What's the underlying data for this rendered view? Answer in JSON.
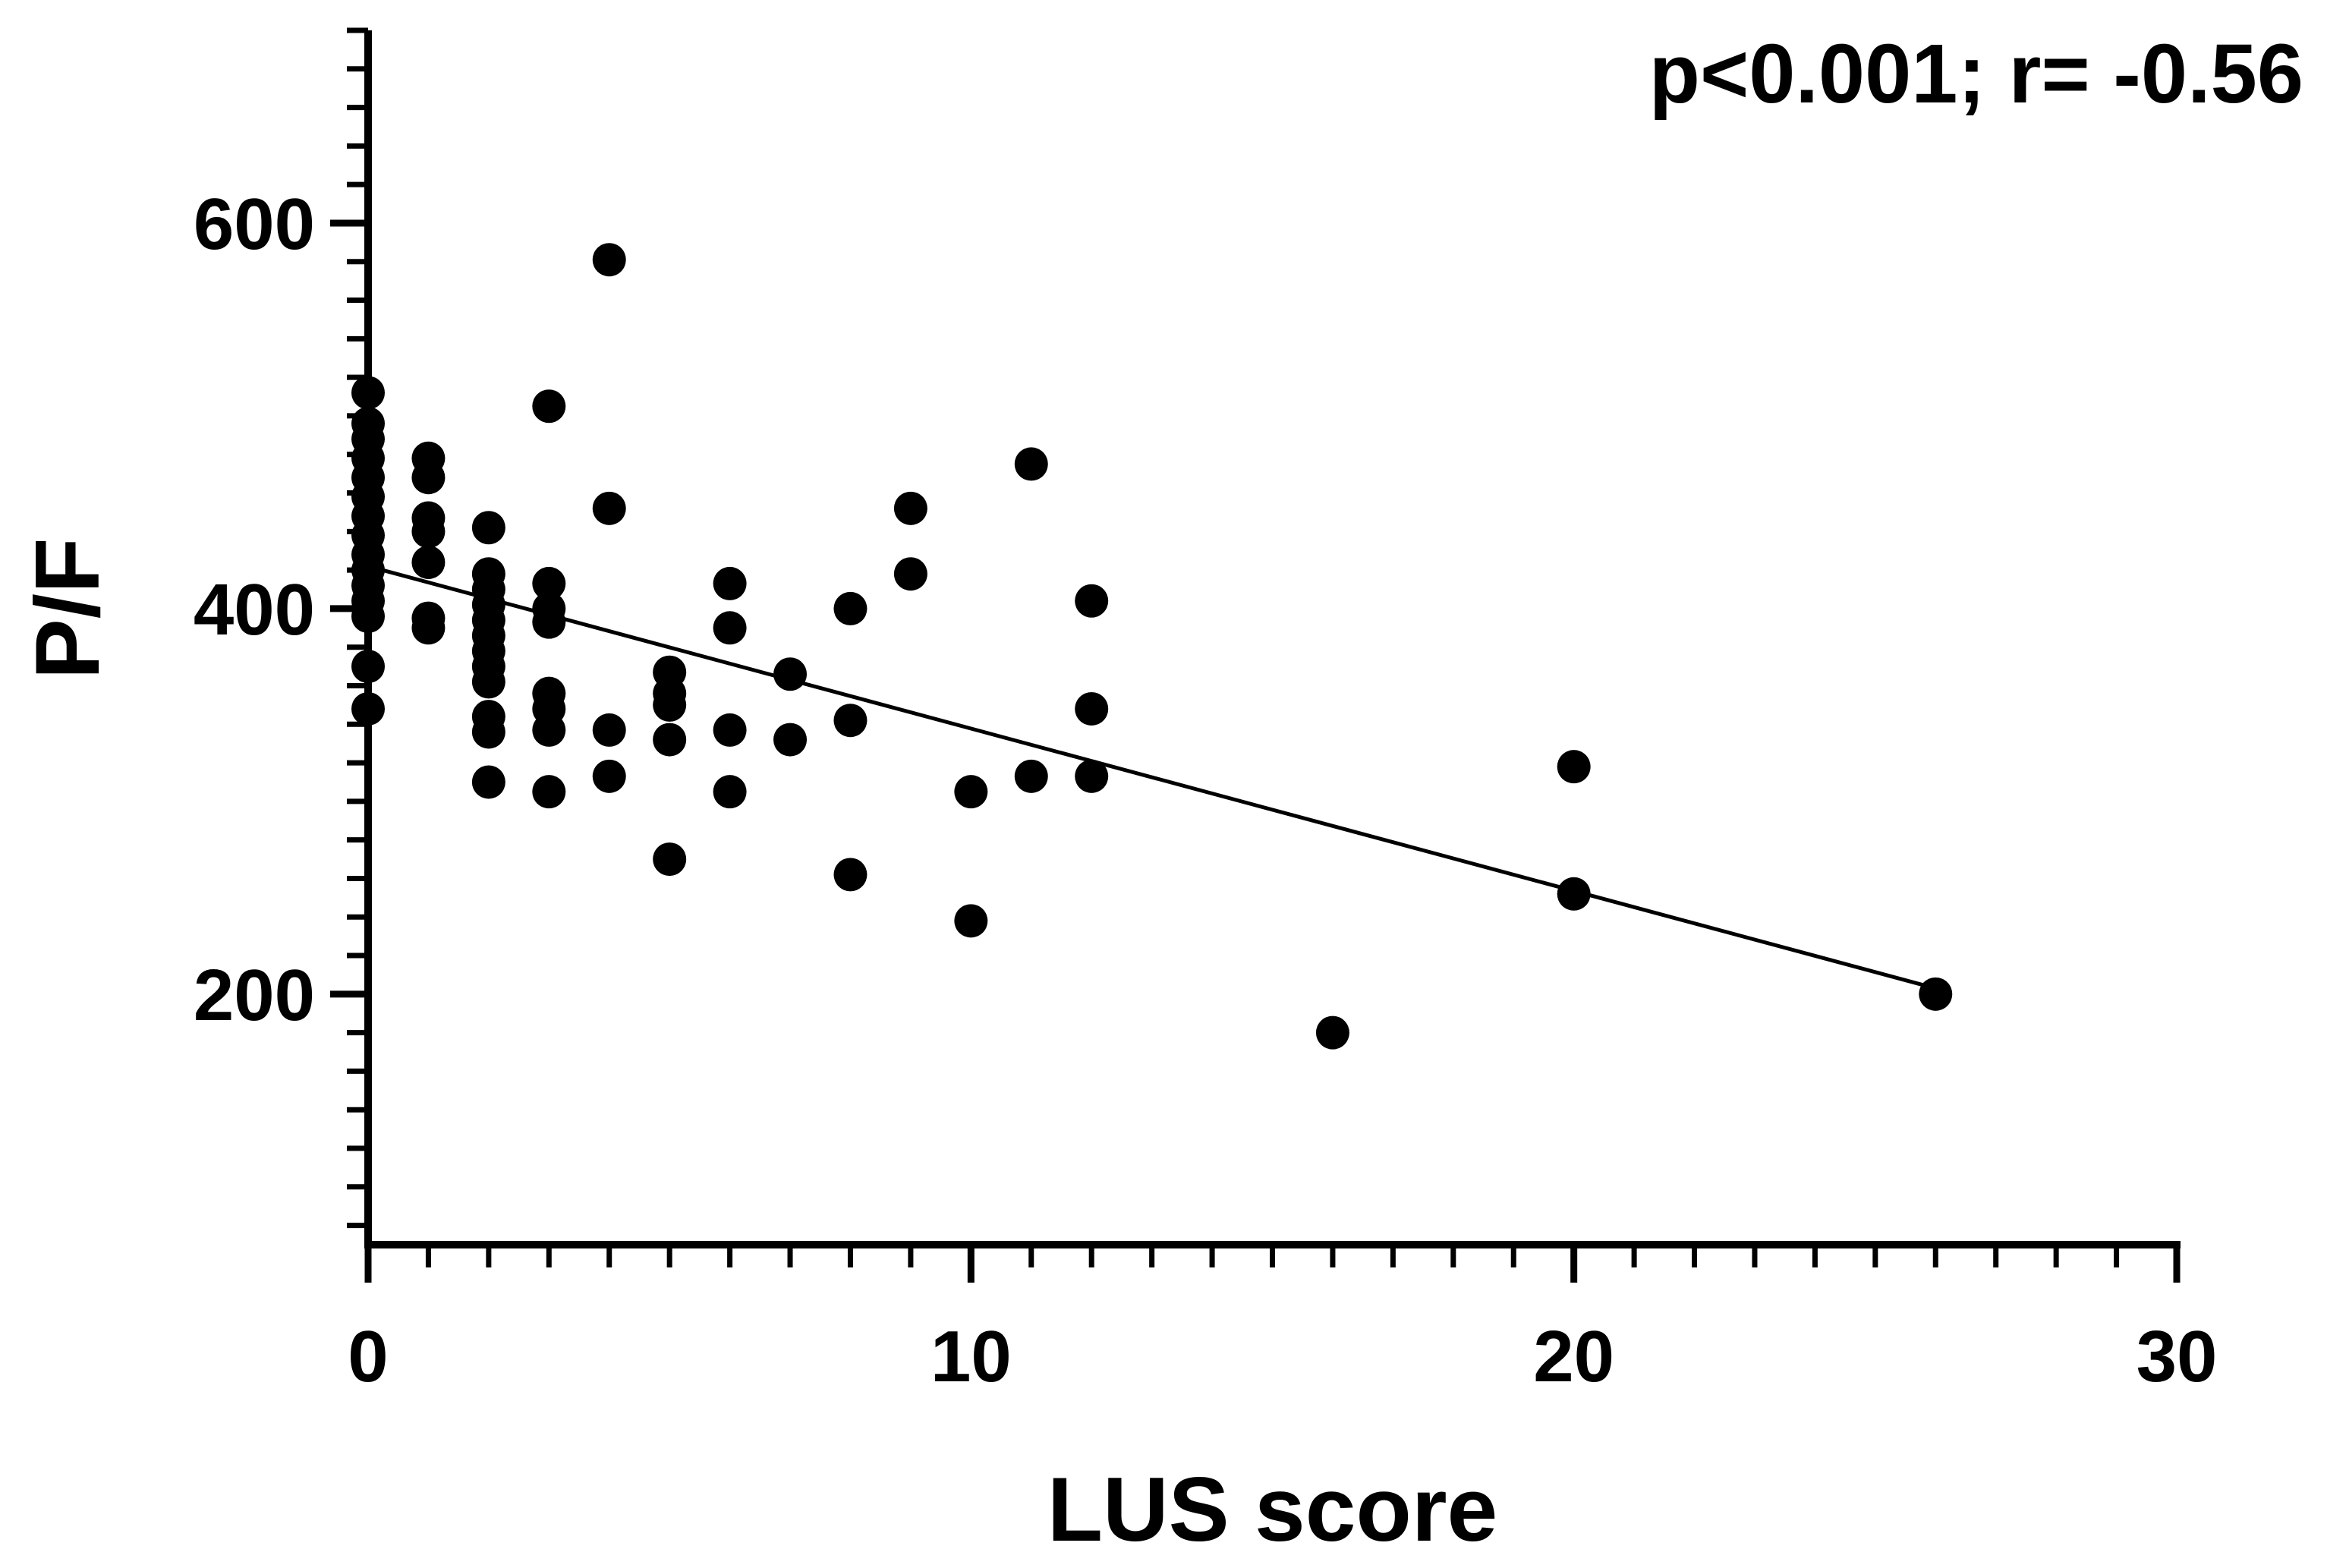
{
  "chart_data": {
    "type": "scatter",
    "title": "",
    "xlabel": "LUS score",
    "ylabel": "P/F",
    "annotation": "p<0.001; r= -0.56",
    "xlim": [
      0,
      30
    ],
    "ylim": [
      70,
      700
    ],
    "x_ticks": [
      0,
      10,
      20,
      30
    ],
    "y_ticks": [
      200,
      400,
      600
    ],
    "x_minor_step": 1,
    "y_minor_step": 20,
    "grid": false,
    "legend": "none",
    "marker_color": "#000000",
    "points": [
      {
        "x": 0,
        "y": 512
      },
      {
        "x": 0,
        "y": 496
      },
      {
        "x": 0,
        "y": 488
      },
      {
        "x": 0,
        "y": 478
      },
      {
        "x": 0,
        "y": 468
      },
      {
        "x": 0,
        "y": 458
      },
      {
        "x": 0,
        "y": 448
      },
      {
        "x": 0,
        "y": 438
      },
      {
        "x": 0,
        "y": 428
      },
      {
        "x": 0,
        "y": 420
      },
      {
        "x": 0,
        "y": 412
      },
      {
        "x": 0,
        "y": 404
      },
      {
        "x": 0,
        "y": 396
      },
      {
        "x": 0,
        "y": 370
      },
      {
        "x": 0,
        "y": 348
      },
      {
        "x": 1,
        "y": 478
      },
      {
        "x": 1,
        "y": 468
      },
      {
        "x": 1,
        "y": 447
      },
      {
        "x": 1,
        "y": 440
      },
      {
        "x": 1,
        "y": 424
      },
      {
        "x": 1,
        "y": 395
      },
      {
        "x": 1,
        "y": 390
      },
      {
        "x": 2,
        "y": 442
      },
      {
        "x": 2,
        "y": 418
      },
      {
        "x": 2,
        "y": 410
      },
      {
        "x": 2,
        "y": 402
      },
      {
        "x": 2,
        "y": 394
      },
      {
        "x": 2,
        "y": 386
      },
      {
        "x": 2,
        "y": 378
      },
      {
        "x": 2,
        "y": 370
      },
      {
        "x": 2,
        "y": 362
      },
      {
        "x": 2,
        "y": 344
      },
      {
        "x": 2,
        "y": 336
      },
      {
        "x": 2,
        "y": 310
      },
      {
        "x": 3,
        "y": 505
      },
      {
        "x": 3,
        "y": 413
      },
      {
        "x": 3,
        "y": 400
      },
      {
        "x": 3,
        "y": 393
      },
      {
        "x": 3,
        "y": 356
      },
      {
        "x": 3,
        "y": 348
      },
      {
        "x": 3,
        "y": 337
      },
      {
        "x": 3,
        "y": 305
      },
      {
        "x": 4,
        "y": 581
      },
      {
        "x": 4,
        "y": 452
      },
      {
        "x": 4,
        "y": 337
      },
      {
        "x": 4,
        "y": 313
      },
      {
        "x": 5,
        "y": 367
      },
      {
        "x": 5,
        "y": 356
      },
      {
        "x": 5,
        "y": 350
      },
      {
        "x": 5,
        "y": 332
      },
      {
        "x": 5,
        "y": 270
      },
      {
        "x": 6,
        "y": 413
      },
      {
        "x": 6,
        "y": 390
      },
      {
        "x": 6,
        "y": 337
      },
      {
        "x": 6,
        "y": 305
      },
      {
        "x": 7,
        "y": 366
      },
      {
        "x": 7,
        "y": 332
      },
      {
        "x": 8,
        "y": 400
      },
      {
        "x": 8,
        "y": 342
      },
      {
        "x": 8,
        "y": 262
      },
      {
        "x": 9,
        "y": 452
      },
      {
        "x": 9,
        "y": 418
      },
      {
        "x": 10,
        "y": 305
      },
      {
        "x": 10,
        "y": 238
      },
      {
        "x": 11,
        "y": 475
      },
      {
        "x": 11,
        "y": 313
      },
      {
        "x": 12,
        "y": 404
      },
      {
        "x": 12,
        "y": 348
      },
      {
        "x": 12,
        "y": 313
      },
      {
        "x": 16,
        "y": 180
      },
      {
        "x": 20,
        "y": 318
      },
      {
        "x": 20,
        "y": 252
      },
      {
        "x": 26,
        "y": 200
      }
    ],
    "regression_line": {
      "x": [
        0,
        26
      ],
      "y": [
        422,
        203
      ]
    }
  }
}
